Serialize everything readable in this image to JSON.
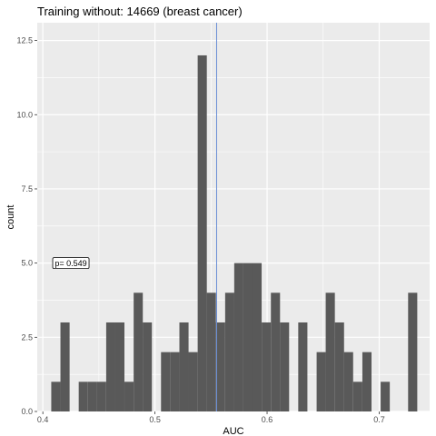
{
  "chart_data": {
    "type": "bar",
    "title": "Training without: 14669 (breast cancer)",
    "xlabel": "AUC",
    "ylabel": "count",
    "xlim": [
      0.395,
      0.745
    ],
    "ylim": [
      0,
      13.1
    ],
    "x_ticks": [
      0.4,
      0.5,
      0.6,
      0.7
    ],
    "x_tick_labels": [
      "0.4",
      "0.5",
      "0.6",
      "0.7"
    ],
    "y_ticks": [
      0,
      2.5,
      5,
      7.5,
      10,
      12.5
    ],
    "y_tick_labels": [
      "0.0",
      "2.5",
      "5.0",
      "7.5",
      "10.0",
      "12.5"
    ],
    "grid": true,
    "bin_width": 0.00816,
    "bins": [
      {
        "x_start": 0.4075,
        "count": 1
      },
      {
        "x_start": 0.4157,
        "count": 3
      },
      {
        "x_start": 0.4238,
        "count": 0
      },
      {
        "x_start": 0.432,
        "count": 1
      },
      {
        "x_start": 0.4402,
        "count": 1
      },
      {
        "x_start": 0.4483,
        "count": 1
      },
      {
        "x_start": 0.4565,
        "count": 3
      },
      {
        "x_start": 0.4646,
        "count": 3
      },
      {
        "x_start": 0.4728,
        "count": 1
      },
      {
        "x_start": 0.481,
        "count": 4
      },
      {
        "x_start": 0.4891,
        "count": 3
      },
      {
        "x_start": 0.4973,
        "count": 0
      },
      {
        "x_start": 0.5054,
        "count": 2
      },
      {
        "x_start": 0.5136,
        "count": 2
      },
      {
        "x_start": 0.5218,
        "count": 3
      },
      {
        "x_start": 0.5299,
        "count": 2
      },
      {
        "x_start": 0.5381,
        "count": 12
      },
      {
        "x_start": 0.5462,
        "count": 4
      },
      {
        "x_start": 0.5544,
        "count": 3
      },
      {
        "x_start": 0.5626,
        "count": 4
      },
      {
        "x_start": 0.5707,
        "count": 5
      },
      {
        "x_start": 0.5789,
        "count": 5
      },
      {
        "x_start": 0.587,
        "count": 5
      },
      {
        "x_start": 0.5952,
        "count": 3
      },
      {
        "x_start": 0.6034,
        "count": 4
      },
      {
        "x_start": 0.6115,
        "count": 3
      },
      {
        "x_start": 0.6197,
        "count": 0
      },
      {
        "x_start": 0.6278,
        "count": 3
      },
      {
        "x_start": 0.636,
        "count": 0
      },
      {
        "x_start": 0.6442,
        "count": 2
      },
      {
        "x_start": 0.6523,
        "count": 4
      },
      {
        "x_start": 0.6605,
        "count": 3
      },
      {
        "x_start": 0.6686,
        "count": 2
      },
      {
        "x_start": 0.6768,
        "count": 1
      },
      {
        "x_start": 0.685,
        "count": 2
      },
      {
        "x_start": 0.6931,
        "count": 0
      },
      {
        "x_start": 0.7013,
        "count": 1
      },
      {
        "x_start": 0.7094,
        "count": 0
      },
      {
        "x_start": 0.7176,
        "count": 0
      },
      {
        "x_start": 0.7258,
        "count": 4
      }
    ],
    "vline": {
      "x": 0.555,
      "color": "#6b8fd6"
    },
    "annotation": {
      "text": "p= 0.549",
      "x": 0.425,
      "y": 5.0
    },
    "colors": {
      "panel_background": "#ebebeb",
      "grid": "#ffffff",
      "bar_fill": "#595959"
    }
  }
}
